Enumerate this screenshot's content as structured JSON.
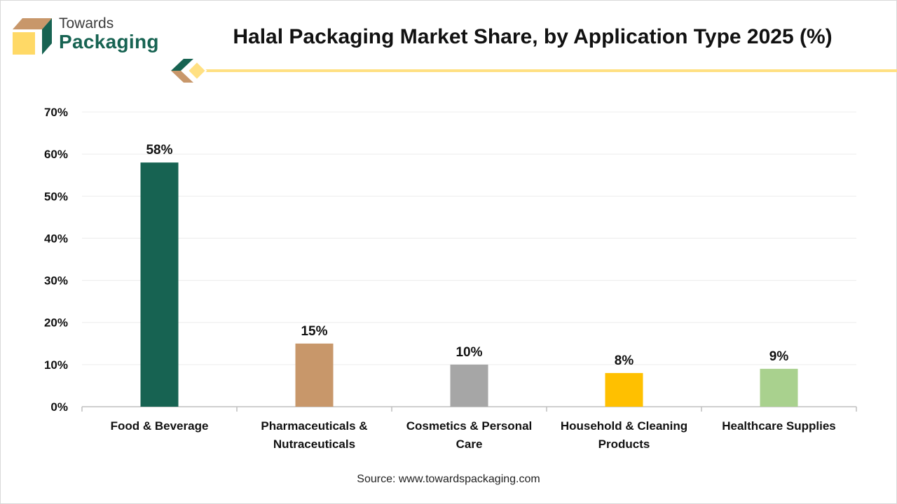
{
  "brand": {
    "line1": "Towards",
    "line2": "Packaging"
  },
  "colors": {
    "brand_green": "#176352",
    "brand_tan": "#c8976a",
    "brand_yellow": "#ffd966",
    "accent_line": "#ffe082"
  },
  "source": "Source: www.towardspackaging.com",
  "chart_data": {
    "type": "bar",
    "title": "Halal Packaging Market Share, by Application Type 2025 (%)",
    "categories": [
      [
        "Food & Beverage"
      ],
      [
        "Pharmaceuticals &",
        "Nutraceuticals"
      ],
      [
        "Cosmetics & Personal",
        "Care"
      ],
      [
        "Household & Cleaning",
        "Products"
      ],
      [
        "Healthcare Supplies"
      ]
    ],
    "values": [
      58,
      15,
      10,
      8,
      9
    ],
    "value_labels": [
      "58%",
      "15%",
      "10%",
      "8%",
      "9%"
    ],
    "bar_colors": [
      "#176352",
      "#c8976a",
      "#a6a6a6",
      "#ffc000",
      "#a9d18e"
    ],
    "ylim": [
      0,
      70
    ],
    "yticks": [
      0,
      10,
      20,
      30,
      40,
      50,
      60,
      70
    ],
    "ytick_labels": [
      "0%",
      "10%",
      "20%",
      "30%",
      "40%",
      "50%",
      "60%",
      "70%"
    ],
    "xlabel": "",
    "ylabel": "",
    "grid": true,
    "legend": "none"
  }
}
